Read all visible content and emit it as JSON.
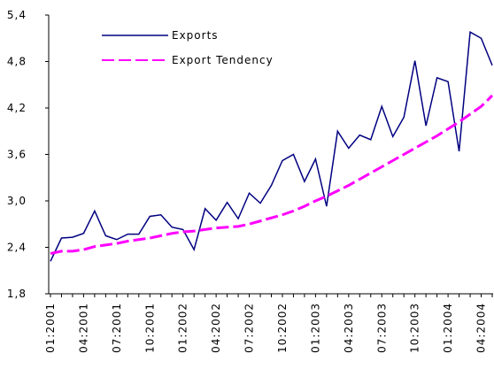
{
  "chart_data": {
    "type": "line",
    "categories": [
      "01:2001",
      null,
      null,
      "04:2001",
      null,
      null,
      "07:2001",
      null,
      null,
      "10:2001",
      null,
      null,
      "01:2002",
      null,
      null,
      "04:2002",
      null,
      null,
      "07:2002",
      null,
      null,
      "10:2002",
      null,
      null,
      "01:2003",
      null,
      null,
      "04:2003",
      null,
      null,
      "07:2003",
      null,
      null,
      "10:2003",
      null,
      null,
      "01:2004",
      null,
      null,
      "04:2004",
      null
    ],
    "series": [
      {
        "name": "Exports",
        "color": "#000080",
        "dash": false,
        "values": [
          2.22,
          2.52,
          2.53,
          2.58,
          2.87,
          2.55,
          2.5,
          2.57,
          2.57,
          2.8,
          2.82,
          2.66,
          2.63,
          2.37,
          2.9,
          2.75,
          2.98,
          2.77,
          3.1,
          2.97,
          3.2,
          3.52,
          3.6,
          3.25,
          3.54,
          2.93,
          3.9,
          3.68,
          3.85,
          3.79,
          4.22,
          3.83,
          4.08,
          4.81,
          3.97,
          4.59,
          4.54,
          3.64,
          5.18,
          5.1,
          4.75
        ]
      },
      {
        "name": "Export Tendency",
        "color": "#ff00ff",
        "dash": true,
        "values": [
          2.32,
          2.35,
          2.35,
          2.37,
          2.41,
          2.43,
          2.45,
          2.48,
          2.5,
          2.52,
          2.55,
          2.58,
          2.6,
          2.61,
          2.63,
          2.65,
          2.66,
          2.67,
          2.7,
          2.74,
          2.78,
          2.82,
          2.87,
          2.93,
          3.0,
          3.06,
          3.13,
          3.2,
          3.28,
          3.36,
          3.44,
          3.52,
          3.6,
          3.68,
          3.76,
          3.84,
          3.93,
          4.02,
          4.12,
          4.22,
          4.36
        ]
      }
    ],
    "ylim": [
      1.8,
      5.4
    ],
    "yticks": [
      {
        "value": 1.8,
        "label": "1,8"
      },
      {
        "value": 2.4,
        "label": "2,4"
      },
      {
        "value": 3.0,
        "label": "3,0"
      },
      {
        "value": 3.6,
        "label": "3,6"
      },
      {
        "value": 4.2,
        "label": "4,2"
      },
      {
        "value": 4.8,
        "label": "4,8"
      },
      {
        "value": 5.4,
        "label": "5,4"
      }
    ]
  }
}
